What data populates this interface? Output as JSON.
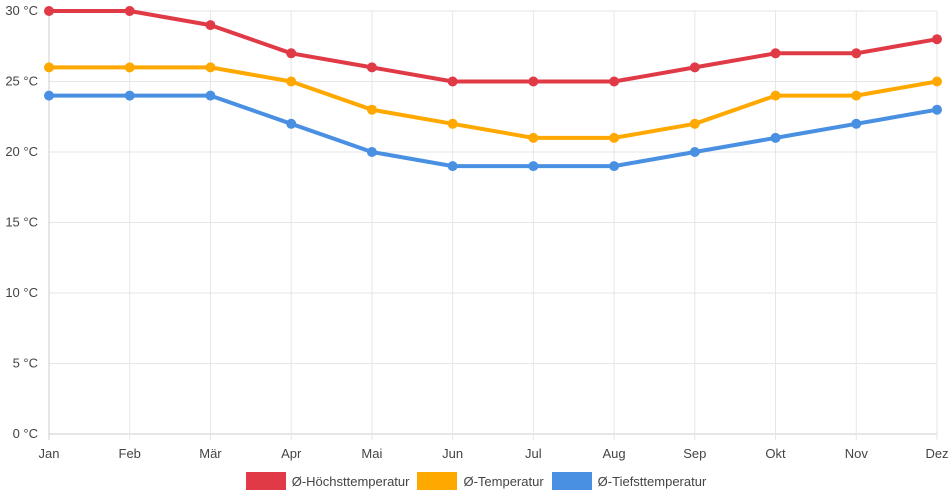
{
  "chart_data": {
    "type": "line",
    "title": "",
    "xlabel": "",
    "ylabel": "",
    "categories": [
      "Jan",
      "Feb",
      "Mär",
      "Apr",
      "Mai",
      "Jun",
      "Jul",
      "Aug",
      "Sep",
      "Okt",
      "Nov",
      "Dez"
    ],
    "ylim": [
      0,
      30
    ],
    "yticks": [
      0,
      5,
      10,
      15,
      20,
      25,
      30
    ],
    "ytick_labels": [
      "0 °C",
      "5 °C",
      "10 °C",
      "15 °C",
      "20 °C",
      "25 °C",
      "30 °C"
    ],
    "grid": true,
    "legend_position": "bottom-center",
    "series": [
      {
        "name": "Ø-Höchsttemperatur",
        "color": "#e03a47",
        "values": [
          30,
          30,
          29,
          27,
          26,
          25,
          25,
          25,
          26,
          27,
          27,
          28
        ]
      },
      {
        "name": "Ø-Temperatur",
        "color": "#ffa800",
        "values": [
          26,
          26,
          26,
          25,
          23,
          22,
          21,
          21,
          22,
          24,
          24,
          25
        ]
      },
      {
        "name": "Ø-Tiefsttemperatur",
        "color": "#4a90e2",
        "values": [
          24,
          24,
          24,
          22,
          20,
          19,
          19,
          19,
          20,
          21,
          22,
          23
        ]
      }
    ]
  }
}
